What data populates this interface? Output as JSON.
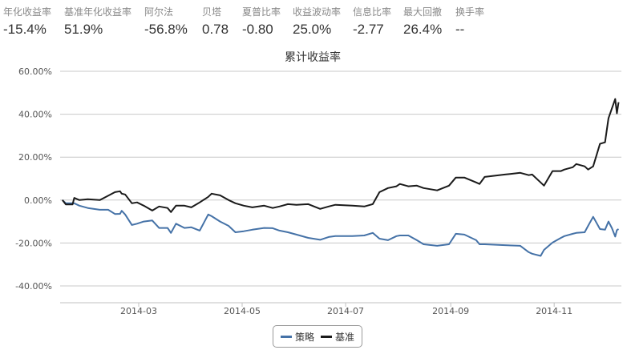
{
  "stats": [
    {
      "label": "年化收益率",
      "value": "-15.4%"
    },
    {
      "label": "基准年化收益率",
      "value": "51.9%"
    },
    {
      "label": "阿尔法",
      "value": "-56.8%"
    },
    {
      "label": "贝塔",
      "value": "0.78"
    },
    {
      "label": "夏普比率",
      "value": "-0.80"
    },
    {
      "label": "收益波动率",
      "value": "25.0%"
    },
    {
      "label": "信息比率",
      "value": "-2.77"
    },
    {
      "label": "最大回撤",
      "value": "26.4%"
    },
    {
      "label": "换手率",
      "value": "--"
    }
  ],
  "chart_data": {
    "type": "line",
    "title": "累计收益率",
    "ylim": [
      -40,
      60
    ],
    "yticks": [
      "60.00%",
      "40.00%",
      "20.00%",
      "0.00%",
      "-20.00%",
      "-40.00%"
    ],
    "xticks": [
      "2014-03",
      "2014-05",
      "2014-07",
      "2014-09",
      "2014-11"
    ],
    "grid": true,
    "legend": "bottom-center",
    "x": [
      "2014-01-15",
      "2014-01-17",
      "2014-01-21",
      "2014-01-22",
      "2014-01-25",
      "2014-01-30",
      "2014-02-06",
      "2014-02-11",
      "2014-02-15",
      "2014-02-18",
      "2014-02-19",
      "2014-02-21",
      "2014-02-25",
      "2014-02-28",
      "2014-03-04",
      "2014-03-09",
      "2014-03-13",
      "2014-03-18",
      "2014-03-20",
      "2014-03-23",
      "2014-03-28",
      "2014-04-01",
      "2014-04-06",
      "2014-04-11",
      "2014-04-13",
      "2014-04-18",
      "2014-04-23",
      "2014-04-27",
      "2014-05-02",
      "2014-05-07",
      "2014-05-14",
      "2014-05-19",
      "2014-05-23",
      "2014-05-28",
      "2014-06-02",
      "2014-06-09",
      "2014-06-16",
      "2014-06-21",
      "2014-06-25",
      "2014-07-05",
      "2014-07-12",
      "2014-07-17",
      "2014-07-21",
      "2014-07-26",
      "2014-07-31",
      "2014-08-02",
      "2014-08-07",
      "2014-08-12",
      "2014-08-16",
      "2014-08-24",
      "2014-08-31",
      "2014-09-04",
      "2014-09-09",
      "2014-09-16",
      "2014-09-18",
      "2014-09-21",
      "2014-10-03",
      "2014-10-12",
      "2014-10-17",
      "2014-10-19",
      "2014-10-24",
      "2014-10-26",
      "2014-10-31",
      "2014-11-05",
      "2014-11-07",
      "2014-11-12",
      "2014-11-14",
      "2014-11-19",
      "2014-11-21",
      "2014-11-24",
      "2014-11-28",
      "2014-12-01",
      "2014-12-03",
      "2014-12-05",
      "2014-12-07",
      "2014-12-08",
      "2014-12-09"
    ],
    "series": [
      {
        "name": "策略",
        "color": "#4572a7",
        "values": [
          0,
          -1.5,
          -1.5,
          -1.5,
          -2.6,
          -3.7,
          -4.5,
          -4.5,
          -6.5,
          -6.4,
          -5,
          -6.7,
          -11.6,
          -11,
          -10,
          -9.5,
          -13,
          -13,
          -15.3,
          -11,
          -13,
          -12.7,
          -14.2,
          -6.7,
          -7.5,
          -10,
          -12,
          -15,
          -14.5,
          -13.8,
          -13,
          -13.1,
          -14.2,
          -15,
          -16.1,
          -17.6,
          -18.5,
          -17.2,
          -16.8,
          -16.8,
          -16.5,
          -15.3,
          -18,
          -18.7,
          -16.8,
          -16.5,
          -16.5,
          -18.7,
          -20.6,
          -21.3,
          -20.6,
          -15.7,
          -16.1,
          -18.7,
          -20.6,
          -20.6,
          -21,
          -21.3,
          -24.3,
          -25,
          -26,
          -23.2,
          -19.8,
          -17.6,
          -16.8,
          -15.7,
          -15.3,
          -15,
          -12,
          -7.8,
          -13.5,
          -13.8,
          -10,
          -13,
          -17,
          -14,
          -13.5
        ]
      },
      {
        "name": "基准",
        "color": "#1a1a1a",
        "values": [
          0,
          -2,
          -2,
          1,
          0,
          0.4,
          0,
          2,
          3.7,
          4.1,
          3,
          2.6,
          -1.5,
          -1.1,
          -2.6,
          -4.9,
          -3,
          -3.7,
          -5.6,
          -2.6,
          -2.6,
          -3.4,
          -1.1,
          1.5,
          3,
          2.2,
          0,
          -1.5,
          -2.6,
          -3.4,
          -2.6,
          -3.7,
          -3,
          -1.9,
          -2.2,
          -1.9,
          -4.1,
          -3,
          -2.2,
          -2.6,
          -3,
          -1.9,
          3.7,
          5.6,
          6.4,
          7.5,
          6.4,
          6.7,
          5.6,
          4.5,
          6.7,
          10.5,
          10.5,
          8.2,
          7.5,
          10.8,
          11.9,
          12.7,
          11.6,
          11.9,
          8.2,
          6.7,
          13.5,
          13.5,
          14.2,
          15.3,
          16.8,
          15.7,
          14.2,
          15.7,
          26.2,
          26.9,
          38.1,
          42.6,
          47.1,
          40.4,
          45.6
        ]
      }
    ]
  }
}
